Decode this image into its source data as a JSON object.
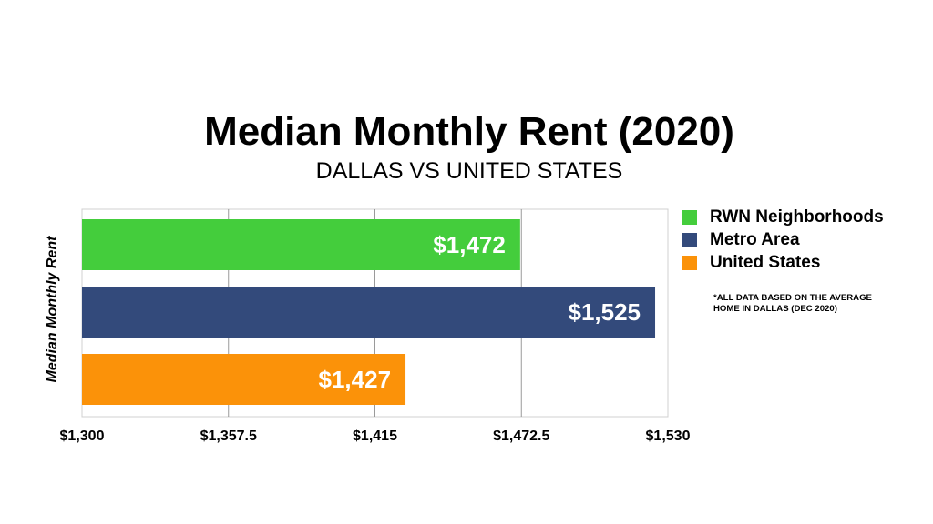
{
  "chart_data": {
    "type": "bar",
    "orientation": "horizontal",
    "title": "Median Monthly Rent (2020)",
    "subtitle": "DALLAS VS UNITED STATES",
    "xlabel": "",
    "ylabel": "Median Monthly Rent",
    "xlim": [
      1300,
      1530
    ],
    "xticks": [
      "$1,300",
      "$1,357.5",
      "$1,415",
      "$1,472.5",
      "$1,530"
    ],
    "xtick_values": [
      1300,
      1357.5,
      1415,
      1472.5,
      1530
    ],
    "grid": true,
    "legend_position": "right",
    "series": [
      {
        "name": "RWN Neighborhoods",
        "value": 1472,
        "label": "$1,472",
        "color": "#44cd3c"
      },
      {
        "name": "Metro Area",
        "value": 1525,
        "label": "$1,525",
        "color": "#334a7b"
      },
      {
        "name": "United States",
        "value": 1427,
        "label": "$1,427",
        "color": "#fb9209"
      }
    ],
    "footnote": "*ALL DATA BASED ON THE AVERAGE HOME IN DALLAS (DEC 2020)"
  }
}
